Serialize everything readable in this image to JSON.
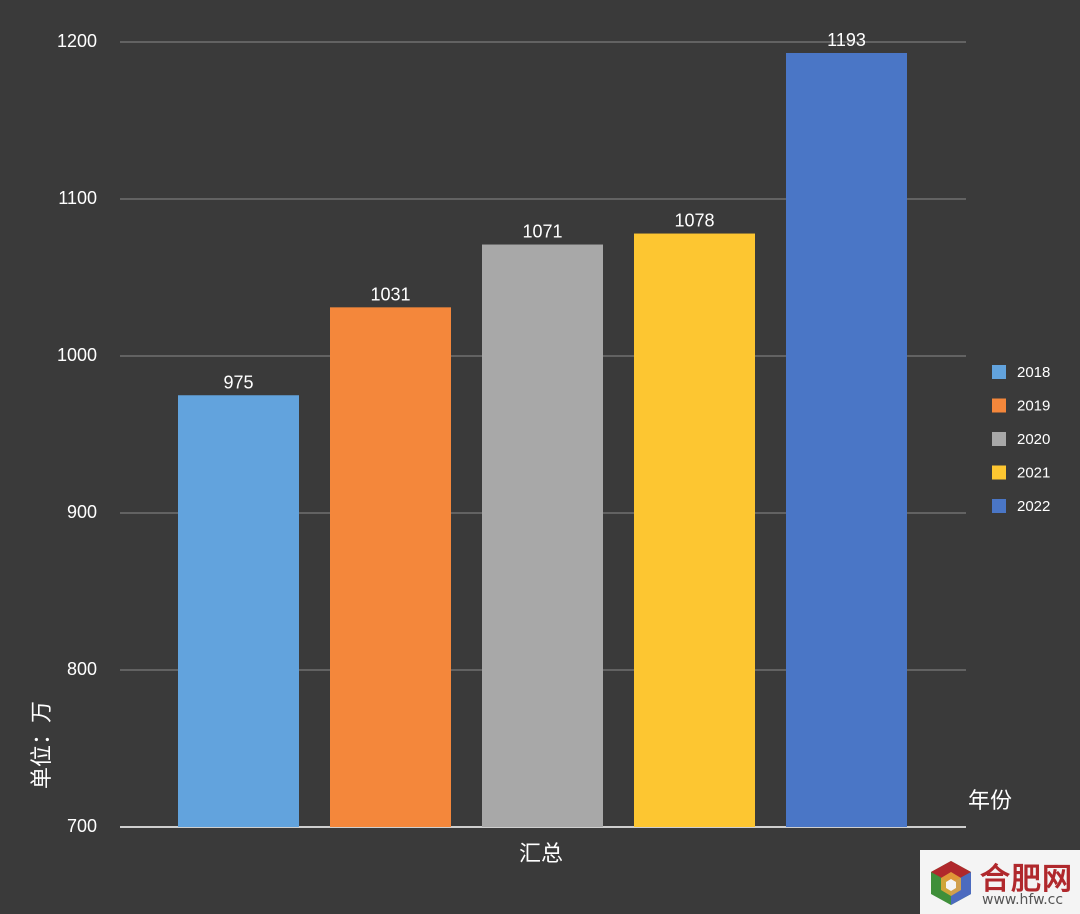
{
  "chart_data": {
    "type": "bar",
    "categories": [
      "汇总"
    ],
    "series": [
      {
        "name": "2018",
        "values": [
          975
        ],
        "color": "#62a3dd"
      },
      {
        "name": "2019",
        "values": [
          1031
        ],
        "color": "#f4873b"
      },
      {
        "name": "2020",
        "values": [
          1071
        ],
        "color": "#a8a8a8"
      },
      {
        "name": "2021",
        "values": [
          1078
        ],
        "color": "#fdc631"
      },
      {
        "name": "2022",
        "values": [
          1193
        ],
        "color": "#4a76c6"
      }
    ],
    "ylabel": "单位：万",
    "legend_title": "年份",
    "ylim": [
      700,
      1200
    ],
    "yticks": [
      700,
      800,
      900,
      1000,
      1100,
      1200
    ],
    "grid": true,
    "legend_position": "right",
    "background": "#3a3a3a",
    "grid_color": "#8a8a8a"
  },
  "watermark": {
    "name": "合肥网",
    "url": "www.hfw.cc"
  }
}
